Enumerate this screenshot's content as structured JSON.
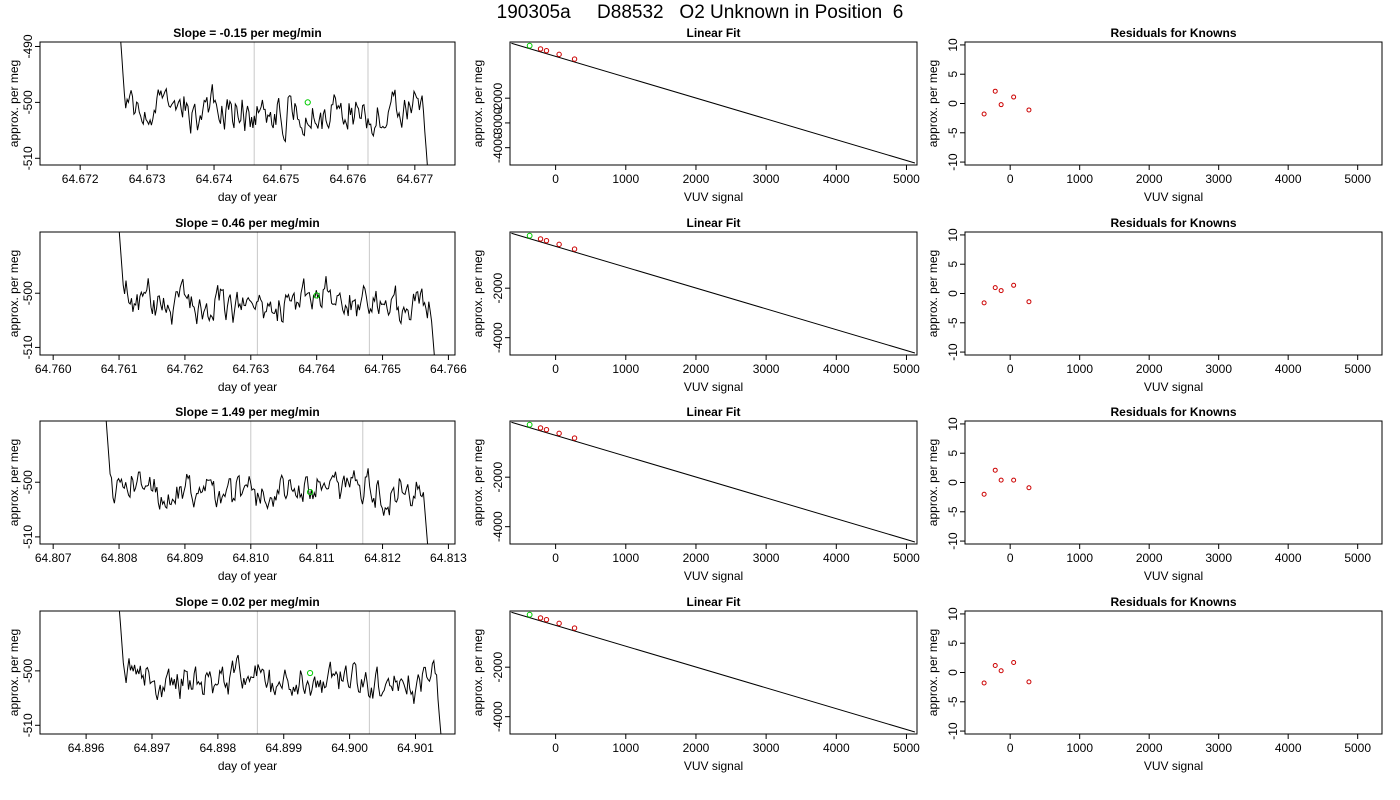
{
  "page": {
    "title": "190305a     D88532   O2 Unknown in Position  6"
  },
  "chart_data": [
    {
      "type": "line",
      "panel": "time-series",
      "row": 1,
      "title": "Slope =  -0.15  per meg/min",
      "xlabel": "day of year",
      "ylabel": "approx. per meg",
      "xlim": [
        64.6714,
        64.6776
      ],
      "ylim": [
        -511.2,
        -489.2
      ],
      "xticks": [
        "64.672",
        "64.673",
        "64.674",
        "64.675",
        "64.676",
        "64.677"
      ],
      "yticks": [
        "-510",
        "-500",
        "-490"
      ],
      "start": 64.6726,
      "end": 64.67725,
      "vlines": [
        64.6746,
        64.6763
      ],
      "marker": {
        "x": 64.6754,
        "y": -500.0,
        "color": "#00cc00"
      },
      "series_color": "#000000"
    },
    {
      "type": "scatter",
      "panel": "linear-fit",
      "row": 1,
      "title": "Linear Fit",
      "xlabel": "VUV signal",
      "ylabel": "approx. per meg",
      "xlim": [
        -650,
        5150
      ],
      "ylim": [
        -4700,
        270
      ],
      "xticks": [
        "0",
        "1000",
        "2000",
        "3000",
        "4000",
        "5000"
      ],
      "yticks": [
        "-4000",
        "-3000",
        "-2000"
      ],
      "line": {
        "x": [
          -630,
          5120
        ],
        "y": [
          220,
          -4620
        ]
      },
      "points": {
        "x": [
          -215,
          -130,
          50,
          270
        ],
        "y": [
          -10,
          -80,
          -230,
          -420
        ],
        "color": "#cc0000"
      },
      "highlight": {
        "x": -370,
        "y": 120,
        "color": "#00cc00"
      }
    },
    {
      "type": "scatter",
      "panel": "residuals",
      "row": 1,
      "title": "Residuals for Knowns",
      "xlabel": "VUV signal",
      "ylabel": "approx. per meg",
      "xlim": [
        -650,
        5350
      ],
      "ylim": [
        -10.5,
        10.5
      ],
      "xticks": [
        "0",
        "1000",
        "2000",
        "3000",
        "4000",
        "5000"
      ],
      "yticks": [
        "-10",
        "-5",
        "0",
        "5",
        "10"
      ],
      "points": {
        "x": [
          -375,
          -215,
          -130,
          50,
          270
        ],
        "y": [
          -1.8,
          2.1,
          -0.2,
          1.1,
          -1.1
        ],
        "color": "#cc0000"
      }
    },
    {
      "type": "line",
      "panel": "time-series",
      "row": 2,
      "title": "Slope =  0.46  per meg/min",
      "xlabel": "day of year",
      "ylabel": "approx. per meg",
      "xlim": [
        64.7598,
        64.7661
      ],
      "ylim": [
        -511.4,
        -488.7
      ],
      "xticks": [
        "64.760",
        "64.761",
        "64.762",
        "64.763",
        "64.764",
        "64.765",
        "64.766"
      ],
      "yticks": [
        "-510",
        "-500"
      ],
      "start": 64.761,
      "end": 64.76585,
      "vlines": [
        64.7631,
        64.7648
      ],
      "marker": {
        "x": 64.764,
        "y": -500.4,
        "color": "#00cc00"
      },
      "series_color": "#000000"
    },
    {
      "type": "scatter",
      "panel": "linear-fit",
      "row": 2,
      "title": "Linear Fit",
      "xlabel": "VUV signal",
      "ylabel": "approx. per meg",
      "xlim": [
        -650,
        5150
      ],
      "ylim": [
        -4700,
        270
      ],
      "xticks": [
        "0",
        "1000",
        "2000",
        "3000",
        "4000",
        "5000"
      ],
      "yticks": [
        "-4000",
        "-2000"
      ],
      "line": {
        "x": [
          -630,
          5120
        ],
        "y": [
          220,
          -4620
        ]
      },
      "points": {
        "x": [
          -215,
          -130,
          50,
          270
        ],
        "y": [
          -10,
          -80,
          -230,
          -420
        ],
        "color": "#cc0000"
      },
      "highlight": {
        "x": -370,
        "y": 120,
        "color": "#00cc00"
      }
    },
    {
      "type": "scatter",
      "panel": "residuals",
      "row": 2,
      "title": "Residuals for Knowns",
      "xlabel": "VUV signal",
      "ylabel": "approx. per meg",
      "xlim": [
        -650,
        5350
      ],
      "ylim": [
        -10.5,
        10.5
      ],
      "xticks": [
        "0",
        "1000",
        "2000",
        "3000",
        "4000",
        "5000"
      ],
      "yticks": [
        "-10",
        "-5",
        "0",
        "5",
        "10"
      ],
      "points": {
        "x": [
          -375,
          -215,
          -130,
          50,
          270
        ],
        "y": [
          -1.6,
          1.0,
          0.5,
          1.4,
          -1.4
        ],
        "color": "#cc0000"
      }
    },
    {
      "type": "line",
      "panel": "time-series",
      "row": 3,
      "title": "Slope =  1.49  per meg/min",
      "xlabel": "day of year",
      "ylabel": "approx. per meg",
      "xlim": [
        64.8068,
        64.8131
      ],
      "ylim": [
        -511.3,
        -488.8
      ],
      "xticks": [
        "64.807",
        "64.808",
        "64.809",
        "64.810",
        "64.811",
        "64.812",
        "64.813"
      ],
      "yticks": [
        "-510",
        "-500"
      ],
      "start": 64.8078,
      "end": 64.81275,
      "vlines": [
        64.81,
        64.8117
      ],
      "marker": {
        "x": 64.8109,
        "y": -501.8,
        "color": "#00cc00"
      },
      "series_color": "#000000"
    },
    {
      "type": "scatter",
      "panel": "linear-fit",
      "row": 3,
      "title": "Linear Fit",
      "xlabel": "VUV signal",
      "ylabel": "approx. per meg",
      "xlim": [
        -650,
        5150
      ],
      "ylim": [
        -4700,
        270
      ],
      "xticks": [
        "0",
        "1000",
        "2000",
        "3000",
        "4000",
        "5000"
      ],
      "yticks": [
        "-4000",
        "-2000"
      ],
      "line": {
        "x": [
          -630,
          5120
        ],
        "y": [
          220,
          -4620
        ]
      },
      "points": {
        "x": [
          -215,
          -130,
          50,
          270
        ],
        "y": [
          -10,
          -80,
          -230,
          -420
        ],
        "color": "#cc0000"
      },
      "highlight": {
        "x": -370,
        "y": 120,
        "color": "#00cc00"
      }
    },
    {
      "type": "scatter",
      "panel": "residuals",
      "row": 3,
      "title": "Residuals for Knowns",
      "xlabel": "VUV signal",
      "ylabel": "approx. per meg",
      "xlim": [
        -650,
        5350
      ],
      "ylim": [
        -10.5,
        10.5
      ],
      "xticks": [
        "0",
        "1000",
        "2000",
        "3000",
        "4000",
        "5000"
      ],
      "yticks": [
        "-10",
        "-5",
        "0",
        "5",
        "10"
      ],
      "points": {
        "x": [
          -375,
          -215,
          -130,
          50,
          270
        ],
        "y": [
          -2.0,
          2.1,
          0.4,
          0.4,
          -0.9
        ],
        "color": "#cc0000"
      }
    },
    {
      "type": "line",
      "panel": "time-series",
      "row": 4,
      "title": "Slope =  0.02  per meg/min",
      "xlabel": "day of year",
      "ylabel": "approx. per meg",
      "xlim": [
        64.8953,
        64.9016
      ],
      "ylim": [
        -511.6,
        -489.0
      ],
      "xticks": [
        "64.896",
        "64.897",
        "64.898",
        "64.899",
        "64.900",
        "64.901"
      ],
      "yticks": [
        "-510",
        "-500"
      ],
      "start": 64.8965,
      "end": 64.90145,
      "vlines": [
        64.8986,
        64.9003
      ],
      "marker": {
        "x": 64.8994,
        "y": -500.4,
        "color": "#00cc00"
      },
      "series_color": "#000000"
    },
    {
      "type": "scatter",
      "panel": "linear-fit",
      "row": 4,
      "title": "Linear Fit",
      "xlabel": "VUV signal",
      "ylabel": "approx. per meg",
      "xlim": [
        -650,
        5150
      ],
      "ylim": [
        -4700,
        270
      ],
      "xticks": [
        "0",
        "1000",
        "2000",
        "3000",
        "4000",
        "5000"
      ],
      "yticks": [
        "-4000",
        "-2000"
      ],
      "line": {
        "x": [
          -630,
          5120
        ],
        "y": [
          220,
          -4620
        ]
      },
      "points": {
        "x": [
          -215,
          -130,
          50,
          270
        ],
        "y": [
          -10,
          -80,
          -230,
          -420
        ],
        "color": "#cc0000"
      },
      "highlight": {
        "x": -370,
        "y": 120,
        "color": "#00cc00"
      }
    },
    {
      "type": "scatter",
      "panel": "residuals",
      "row": 4,
      "title": "Residuals for Knowns",
      "xlabel": "VUV signal",
      "ylabel": "approx. per meg",
      "xlim": [
        -650,
        5350
      ],
      "ylim": [
        -10.5,
        10.5
      ],
      "xticks": [
        "0",
        "1000",
        "2000",
        "3000",
        "4000",
        "5000"
      ],
      "yticks": [
        "-10",
        "-5",
        "0",
        "5",
        "10"
      ],
      "points": {
        "x": [
          -375,
          -215,
          -130,
          50,
          270
        ],
        "y": [
          -1.8,
          1.2,
          0.3,
          1.7,
          -1.6
        ],
        "color": "#cc0000"
      }
    }
  ]
}
